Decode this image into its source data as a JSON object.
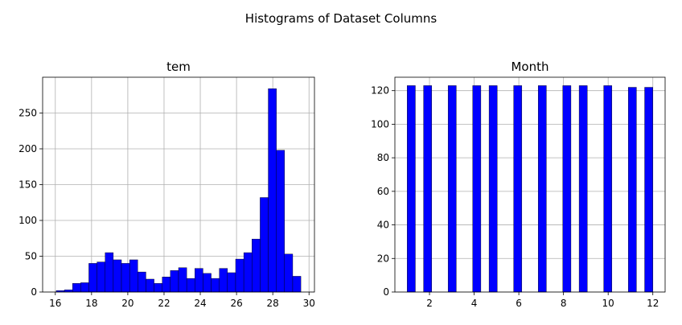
{
  "figure": {
    "suptitle": "Histograms of Dataset Columns",
    "bar_color": "#0000ff",
    "edge_color": "#000000",
    "grid_color": "#b0b0b0"
  },
  "chart_data": [
    {
      "type": "bar",
      "kind": "histogram",
      "title": "tem",
      "xlabel": "",
      "ylabel": "",
      "grid": true,
      "xlim": [
        15.3,
        30.3
      ],
      "ylim": [
        0,
        300
      ],
      "xticks": [
        16,
        18,
        20,
        22,
        24,
        26,
        28,
        30
      ],
      "yticks": [
        0,
        50,
        100,
        150,
        200,
        250
      ],
      "bin_start": 16.05,
      "bin_width": 0.45,
      "counts": [
        2,
        3,
        12,
        13,
        40,
        42,
        55,
        45,
        40,
        45,
        28,
        18,
        12,
        21,
        30,
        34,
        19,
        33,
        26,
        19,
        33,
        27,
        46,
        55,
        74,
        132,
        284,
        198,
        53,
        22
      ]
    },
    {
      "type": "bar",
      "kind": "histogram",
      "title": "Month",
      "xlabel": "",
      "ylabel": "",
      "grid": true,
      "xlim": [
        0.45,
        12.55
      ],
      "ylim": [
        0,
        128
      ],
      "xticks": [
        2,
        4,
        6,
        8,
        10,
        12
      ],
      "yticks": [
        0,
        20,
        40,
        60,
        80,
        100,
        120
      ],
      "bin_start": 1.0,
      "bin_width": 0.3667,
      "bars": [
        {
          "x": 1.0,
          "value": 123
        },
        {
          "x": 1.733,
          "value": 123
        },
        {
          "x": 2.833,
          "value": 123
        },
        {
          "x": 3.933,
          "value": 123
        },
        {
          "x": 4.667,
          "value": 123
        },
        {
          "x": 5.767,
          "value": 123
        },
        {
          "x": 6.867,
          "value": 123
        },
        {
          "x": 7.967,
          "value": 123
        },
        {
          "x": 8.7,
          "value": 123
        },
        {
          "x": 9.8,
          "value": 123
        },
        {
          "x": 10.9,
          "value": 122
        },
        {
          "x": 11.633,
          "value": 122
        }
      ]
    }
  ]
}
